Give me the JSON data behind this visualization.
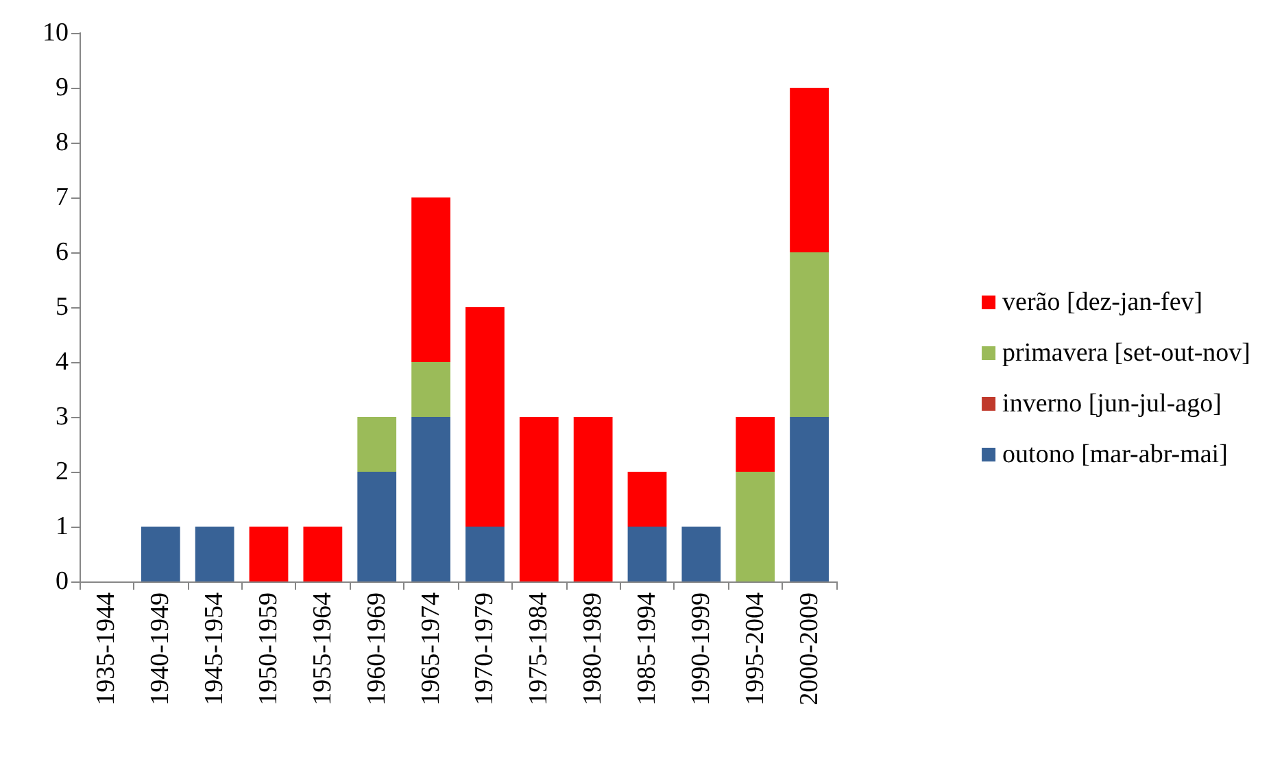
{
  "chart_data": {
    "type": "bar",
    "stacked": true,
    "categories": [
      "1935-1944",
      "1940-1949",
      "1945-1954",
      "1950-1959",
      "1955-1964",
      "1960-1969",
      "1965-1974",
      "1970-1979",
      "1975-1984",
      "1980-1989",
      "1985-1994",
      "1990-1999",
      "1995-2004",
      "2000-2009"
    ],
    "series": [
      {
        "name": "outono [mar-abr-mai]",
        "color": "#386296",
        "values": [
          0,
          1,
          1,
          0,
          0,
          2,
          3,
          1,
          0,
          0,
          1,
          1,
          0,
          3
        ]
      },
      {
        "name": "inverno [jun-jul-ago]",
        "color": "#c0392b",
        "values": [
          0,
          0,
          0,
          0,
          0,
          0,
          0,
          0,
          0,
          0,
          0,
          0,
          0,
          0
        ]
      },
      {
        "name": "primavera [set-out-nov]",
        "color": "#9bbb59",
        "values": [
          0,
          0,
          0,
          0,
          0,
          1,
          1,
          0,
          0,
          0,
          0,
          0,
          2,
          3
        ]
      },
      {
        "name": "verão [dez-jan-fev]",
        "color": "#ff0000",
        "values": [
          0,
          0,
          0,
          1,
          1,
          0,
          3,
          4,
          3,
          3,
          1,
          0,
          1,
          3
        ]
      }
    ],
    "ylim": [
      0,
      10
    ],
    "yticks": [
      0,
      1,
      2,
      3,
      4,
      5,
      6,
      7,
      8,
      9,
      10
    ],
    "grid": false,
    "legend": "right"
  }
}
